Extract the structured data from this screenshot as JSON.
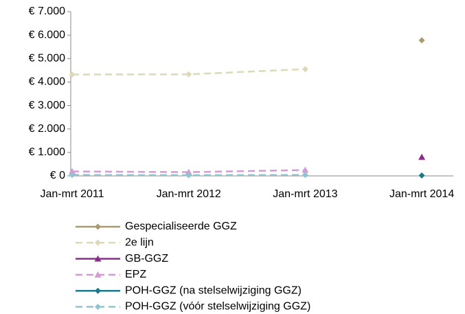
{
  "chart_data": {
    "type": "line",
    "categories": [
      "Jan-mrt 2011",
      "Jan-mrt 2012",
      "Jan-mrt 2013",
      "Jan-mrt 2014"
    ],
    "series": [
      {
        "name": "Gespecialiseerde GGZ",
        "color": "#a89a6e",
        "dashed": false,
        "marker": "diamond",
        "values": [
          null,
          null,
          null,
          5780
        ]
      },
      {
        "name": "2e lijn",
        "color": "#ddd8b8",
        "dashed": true,
        "marker": "diamond",
        "values": [
          4320,
          4330,
          4550,
          null
        ]
      },
      {
        "name": "GB-GGZ",
        "color": "#8b2c8c",
        "dashed": false,
        "marker": "triangle",
        "values": [
          null,
          null,
          null,
          800
        ]
      },
      {
        "name": "EPZ",
        "color": "#d39ad4",
        "dashed": true,
        "marker": "triangle",
        "values": [
          190,
          160,
          250,
          null
        ]
      },
      {
        "name": "POH-GGZ (na stelselwijziging GGZ)",
        "color": "#1a7a8c",
        "dashed": false,
        "marker": "diamond",
        "values": [
          null,
          null,
          null,
          20
        ]
      },
      {
        "name": "POH-GGZ (vóór stelselwijziging GGZ)",
        "color": "#8ec4d0",
        "dashed": true,
        "marker": "diamond",
        "values": [
          40,
          30,
          40,
          null
        ]
      }
    ],
    "ylim": [
      0,
      7000
    ],
    "yticks": [
      {
        "value": 0,
        "label": "€ 0"
      },
      {
        "value": 1000,
        "label": "€ 1.000"
      },
      {
        "value": 2000,
        "label": "€ 2.000"
      },
      {
        "value": 3000,
        "label": "€ 3.000"
      },
      {
        "value": 4000,
        "label": "€ 4.000"
      },
      {
        "value": 5000,
        "label": "€ 5.000"
      },
      {
        "value": 6000,
        "label": "€ 6.000"
      },
      {
        "value": 7000,
        "label": "€ 7.000"
      }
    ],
    "grid": false,
    "legend": "bottom"
  }
}
